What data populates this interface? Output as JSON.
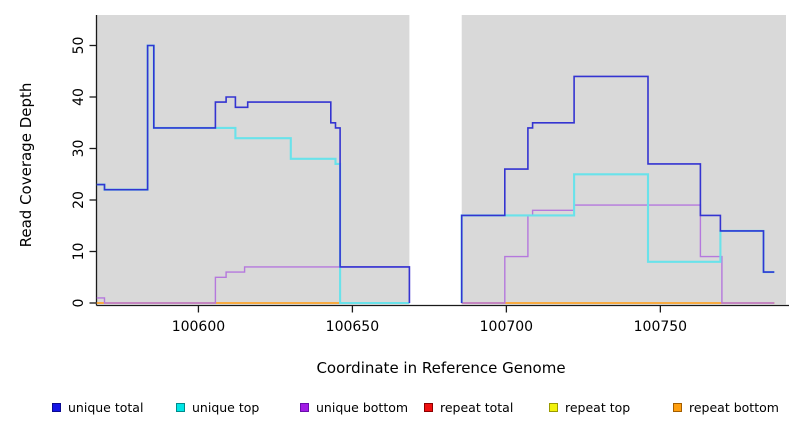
{
  "chart_data": {
    "type": "line",
    "subtype": "step",
    "title": "",
    "xlabel": "Coordinate in Reference Genome",
    "ylabel": "Read Coverage Depth",
    "x_axis": {
      "range": [
        100566.9,
        100790.8
      ],
      "ticks": [
        {
          "value": 100600,
          "label": "100600"
        },
        {
          "value": 100650,
          "label": "100650"
        },
        {
          "value": 100700,
          "label": "100700"
        },
        {
          "value": 100750,
          "label": "100750"
        }
      ]
    },
    "y_axis": {
      "range": [
        0,
        56
      ],
      "ticks": [
        {
          "value": 0,
          "label": "0"
        },
        {
          "value": 10,
          "label": "10"
        },
        {
          "value": 20,
          "label": "20"
        },
        {
          "value": 30,
          "label": "30"
        },
        {
          "value": 40,
          "label": "40"
        },
        {
          "value": 50,
          "label": "50"
        }
      ]
    },
    "background": {
      "figure_color": "#ffffff",
      "shaded_color": "#d9d9d9",
      "shaded_regions": [
        [
          100566.9,
          100668.5
        ],
        [
          100685.5,
          100790.8
        ]
      ],
      "gap_note": "no data between 100668.5 and 100685.5"
    },
    "draw_order": [
      "repeat_top",
      "repeat_total",
      "repeat_bottom",
      "unique_bottom",
      "unique_top",
      "unique_total"
    ],
    "series": [
      {
        "id": "unique_total",
        "label": "unique total",
        "line_color": "#3434d1",
        "swatch_fill": "#1515e6",
        "swatch_border": "#0b0b8f",
        "segments": [
          [
            [
              100567,
              23
            ],
            [
              100569.5,
              23
            ],
            [
              100569.5,
              22
            ],
            [
              100583.5,
              22
            ],
            [
              100583.5,
              50
            ],
            [
              100585.5,
              50
            ],
            [
              100585.5,
              34
            ],
            [
              100605.5,
              34
            ],
            [
              100605.5,
              39
            ],
            [
              100609,
              39
            ],
            [
              100609,
              40
            ],
            [
              100612,
              40
            ],
            [
              100612,
              38
            ],
            [
              100616,
              38
            ],
            [
              100616,
              39
            ],
            [
              100643,
              39
            ],
            [
              100643,
              35
            ],
            [
              100644.5,
              35
            ],
            [
              100644.5,
              34
            ],
            [
              100646,
              34
            ],
            [
              100646,
              7
            ],
            [
              100668.5,
              7
            ],
            [
              100668.5,
              0
            ]
          ],
          [
            [
              100685.5,
              0
            ],
            [
              100685.5,
              17
            ],
            [
              100699.5,
              17
            ],
            [
              100699.5,
              26
            ],
            [
              100707,
              26
            ],
            [
              100707,
              34
            ],
            [
              100708.5,
              34
            ],
            [
              100708.5,
              35
            ],
            [
              100722,
              35
            ],
            [
              100722,
              44
            ],
            [
              100746,
              44
            ],
            [
              100746,
              27
            ],
            [
              100763,
              27
            ],
            [
              100763,
              17
            ],
            [
              100769.5,
              17
            ],
            [
              100769.5,
              14
            ],
            [
              100783.5,
              14
            ],
            [
              100783.5,
              6
            ],
            [
              100787,
              6
            ]
          ]
        ]
      },
      {
        "id": "unique_top",
        "label": "unique top",
        "line_color": "#69e2ea",
        "swatch_fill": "#00e6e6",
        "swatch_border": "#008b8b",
        "segments": [
          [
            [
              100567,
              23
            ],
            [
              100569.5,
              23
            ],
            [
              100569.5,
              22
            ],
            [
              100583.5,
              22
            ],
            [
              100583.5,
              50
            ],
            [
              100585.5,
              50
            ],
            [
              100585.5,
              34
            ],
            [
              100612,
              34
            ],
            [
              100612,
              32
            ],
            [
              100630,
              32
            ],
            [
              100630,
              28
            ],
            [
              100644.5,
              28
            ],
            [
              100644.5,
              27
            ],
            [
              100646,
              27
            ],
            [
              100646,
              0
            ],
            [
              100668.5,
              0
            ]
          ],
          [
            [
              100685.5,
              0
            ],
            [
              100685.5,
              17
            ],
            [
              100722,
              17
            ],
            [
              100722,
              25
            ],
            [
              100746,
              25
            ],
            [
              100746,
              8
            ],
            [
              100769.5,
              8
            ],
            [
              100769.5,
              14
            ],
            [
              100783.5,
              14
            ],
            [
              100783.5,
              6
            ],
            [
              100787,
              6
            ]
          ]
        ]
      },
      {
        "id": "unique_bottom",
        "label": "unique bottom",
        "line_color": "#b578dd",
        "swatch_fill": "#a21ce6",
        "swatch_border": "#6a0dad",
        "segments": [
          [
            [
              100567,
              1
            ],
            [
              100569.5,
              1
            ],
            [
              100569.5,
              0
            ],
            [
              100605.5,
              0
            ],
            [
              100605.5,
              5
            ],
            [
              100609,
              5
            ],
            [
              100609,
              6
            ],
            [
              100615,
              6
            ],
            [
              100615,
              7
            ],
            [
              100668.5,
              7
            ],
            [
              100668.5,
              0
            ]
          ],
          [
            [
              100685.5,
              0
            ],
            [
              100699.5,
              0
            ],
            [
              100699.5,
              9
            ],
            [
              100707,
              9
            ],
            [
              100707,
              17
            ],
            [
              100708.5,
              17
            ],
            [
              100708.5,
              18
            ],
            [
              100722,
              18
            ],
            [
              100722,
              19
            ],
            [
              100763,
              19
            ],
            [
              100763,
              9
            ],
            [
              100770,
              9
            ],
            [
              100770,
              0
            ],
            [
              100787,
              0
            ]
          ]
        ]
      },
      {
        "id": "repeat_total",
        "label": "repeat total",
        "line_color": "#e8678a",
        "swatch_fill": "#ef1010",
        "swatch_border": "#8b0000",
        "segments": [
          [
            [
              100567,
              0
            ],
            [
              100668.5,
              0
            ]
          ],
          [
            [
              100685.5,
              0
            ],
            [
              100787,
              0
            ]
          ]
        ]
      },
      {
        "id": "repeat_top",
        "label": "repeat top",
        "line_color": "#f0f060",
        "swatch_fill": "#f2f20c",
        "swatch_border": "#9a9a00",
        "segments": [
          [
            [
              100567,
              0
            ],
            [
              100668.5,
              0
            ]
          ],
          [
            [
              100685.5,
              0
            ],
            [
              100787,
              0
            ]
          ]
        ]
      },
      {
        "id": "repeat_bottom",
        "label": "repeat bottom",
        "line_color": "#ffa41e",
        "swatch_fill": "#ff9f0f",
        "swatch_border": "#a35e00",
        "segments": [
          [
            [
              100567,
              0
            ],
            [
              100668.5,
              0
            ]
          ],
          [
            [
              100685.5,
              0
            ],
            [
              100787,
              0
            ]
          ]
        ]
      }
    ]
  }
}
